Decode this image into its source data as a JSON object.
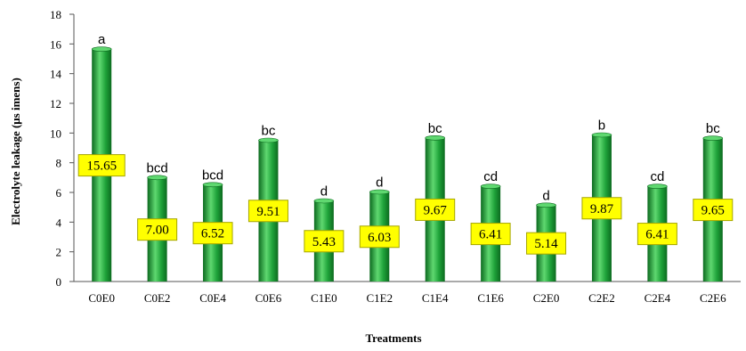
{
  "chart_data": {
    "type": "bar",
    "title": "",
    "xlabel": "Treatments",
    "ylabel": "Electrolyte  leakage (μs imens)",
    "ylim": [
      0,
      18
    ],
    "yticks": [
      0,
      2,
      4,
      6,
      8,
      10,
      12,
      14,
      16,
      18
    ],
    "grid": false,
    "categories": [
      "C0E0",
      "C0E2",
      "C0E4",
      "C0E6",
      "C1E0",
      "C1E2",
      "C1E4",
      "C1E6",
      "C2E0",
      "C2E2",
      "C2E4",
      "C2E6"
    ],
    "values": [
      15.65,
      7.0,
      6.52,
      9.51,
      5.43,
      6.03,
      9.67,
      6.41,
      5.14,
      9.87,
      6.41,
      9.65
    ],
    "value_labels": [
      "15.65",
      "7.00",
      "6.52",
      "9.51",
      "5.43",
      "6.03",
      "9.67",
      "6.41",
      "5.14",
      "9.87",
      "6.41",
      "9.65"
    ],
    "significance_letters": [
      "a",
      "bcd",
      "bcd",
      "bc",
      "d",
      "d",
      "bc",
      "cd",
      "d",
      "b",
      "cd",
      "bc"
    ],
    "colors": {
      "bar": "#1fa33a",
      "bar_dark": "#0c6a1f",
      "bar_light": "#5fd870",
      "label_box": "#ffff00",
      "label_border": "#a6a600"
    }
  }
}
